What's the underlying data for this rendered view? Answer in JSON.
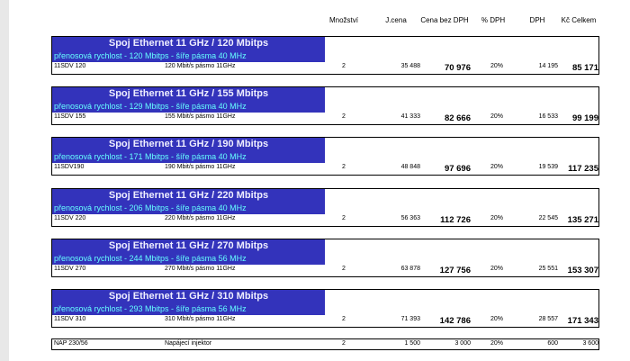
{
  "header": {
    "columns": [
      "Množství",
      "J.cena",
      "Cena bez DPH",
      "% DPH",
      "DPH",
      "Kč Celkem"
    ]
  },
  "sections": [
    {
      "title": "Spoj Ethernet 11 GHz / 120 Mbitps",
      "subtitle": "přenosová rychlost - 120 Mbitps - šíře pásma 40 MHz",
      "row": [
        "11SDV 120",
        "120 Mbit/s pásmo 11GHz",
        "2",
        "35 488",
        "70 976",
        "20%",
        "14 195",
        "85 171"
      ]
    },
    {
      "title": "Spoj Ethernet 11 GHz / 155 Mbitps",
      "subtitle": "přenosová rychlost - 129 Mbitps - šíře pásma 40 MHz",
      "row": [
        "11SDV 155",
        "155 Mbit/s pásmo 11GHz",
        "2",
        "41 333",
        "82 666",
        "20%",
        "16 533",
        "99 199"
      ]
    },
    {
      "title": "Spoj Ethernet 11 GHz / 190 Mbitps",
      "subtitle": "přenosová rychlost - 171 Mbitps - šíře pásma 40 MHz",
      "row": [
        "11SDV190",
        "190 Mbit/s pásmo 11GHz",
        "2",
        "48 848",
        "97 696",
        "20%",
        "19 539",
        "117 235"
      ]
    },
    {
      "title": "Spoj Ethernet 11 GHz / 220 Mbitps",
      "subtitle": "přenosová rychlost - 206 Mbitps - šíře pásma 40 MHz",
      "row": [
        "11SDV 220",
        "220 Mbit/s pásmo 11GHz",
        "2",
        "56 363",
        "112 726",
        "20%",
        "22 545",
        "135 271"
      ]
    },
    {
      "title": "Spoj Ethernet 11 GHz / 270 Mbitps",
      "subtitle": "přenosová rychlost - 244 Mbitps - šíře pásma 56 MHz",
      "row": [
        "11SDV 270",
        "270 Mbit/s pásmo 11GHz",
        "2",
        "63 878",
        "127 756",
        "20%",
        "25 551",
        "153 307"
      ]
    },
    {
      "title": "Spoj Ethernet 11 GHz / 310 Mbitps",
      "subtitle": "přenosová rychlost - 293 Mbitps - šíře pásma 56 MHz",
      "row": [
        "11SDV 310",
        "310 Mbit/s pásmo 11GHz",
        "2",
        "71 393",
        "142 786",
        "20%",
        "28 557",
        "171 343"
      ]
    }
  ],
  "footer_row": [
    "NAP 230/56",
    "Napájecí injektor",
    "2",
    "1 500",
    "3 000",
    "20%",
    "600",
    "3 600"
  ]
}
